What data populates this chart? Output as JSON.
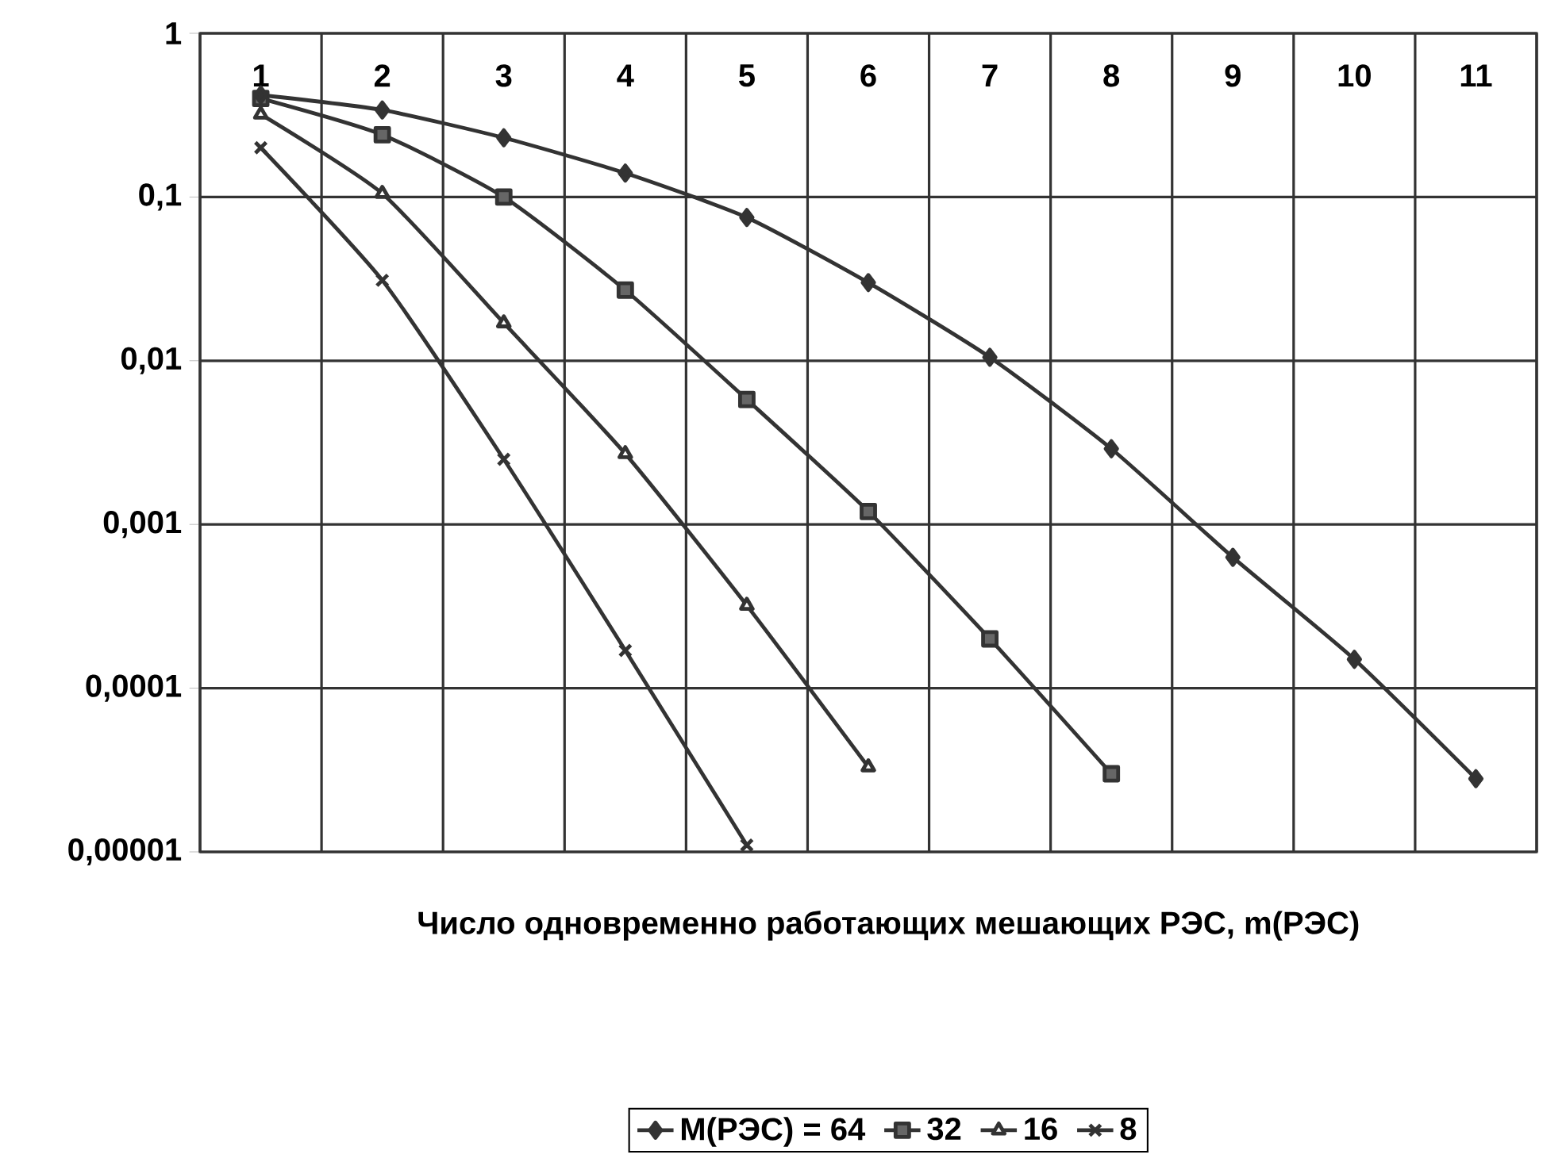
{
  "chart_data": {
    "type": "line",
    "xlabel": "Число одновременно работающих мешающих РЭС, m(РЭС)",
    "categories": [
      "1",
      "2",
      "3",
      "4",
      "5",
      "6",
      "7",
      "8",
      "9",
      "10",
      "11"
    ],
    "log": true,
    "ylim": [
      1e-05,
      1
    ],
    "yticks": [
      {
        "value": 1,
        "label": "1"
      },
      {
        "value": 0.1,
        "label": "0,1"
      },
      {
        "value": 0.01,
        "label": "0,01"
      },
      {
        "value": 0.001,
        "label": "0,001"
      },
      {
        "value": 0.0001,
        "label": "0,0001"
      },
      {
        "value": 1e-05,
        "label": "0,00001"
      }
    ],
    "grid": true,
    "legend": "bottom",
    "series": [
      {
        "name": "M(РЭС) = 64",
        "color": "#333333",
        "marker": "diamond",
        "values": [
          0.42,
          0.34,
          0.23,
          0.14,
          0.075,
          0.03,
          0.0105,
          0.0029,
          0.00063,
          0.00015,
          2.8e-05
        ]
      },
      {
        "name": "32",
        "color": "#333333",
        "marker": "square",
        "values": [
          0.4,
          0.24,
          0.1,
          0.027,
          0.0058,
          0.0012,
          0.0002,
          3e-05,
          null,
          null,
          null
        ]
      },
      {
        "name": "16",
        "color": "#333333",
        "marker": "triangle",
        "values": [
          0.32,
          0.105,
          0.017,
          0.0027,
          0.00032,
          3.3e-05,
          null,
          null,
          null,
          null,
          null
        ]
      },
      {
        "name": "8",
        "color": "#333333",
        "marker": "cross",
        "values": [
          0.2,
          0.031,
          0.0025,
          0.00017,
          1.1e-05,
          null,
          null,
          null,
          null,
          null,
          null
        ]
      }
    ]
  }
}
